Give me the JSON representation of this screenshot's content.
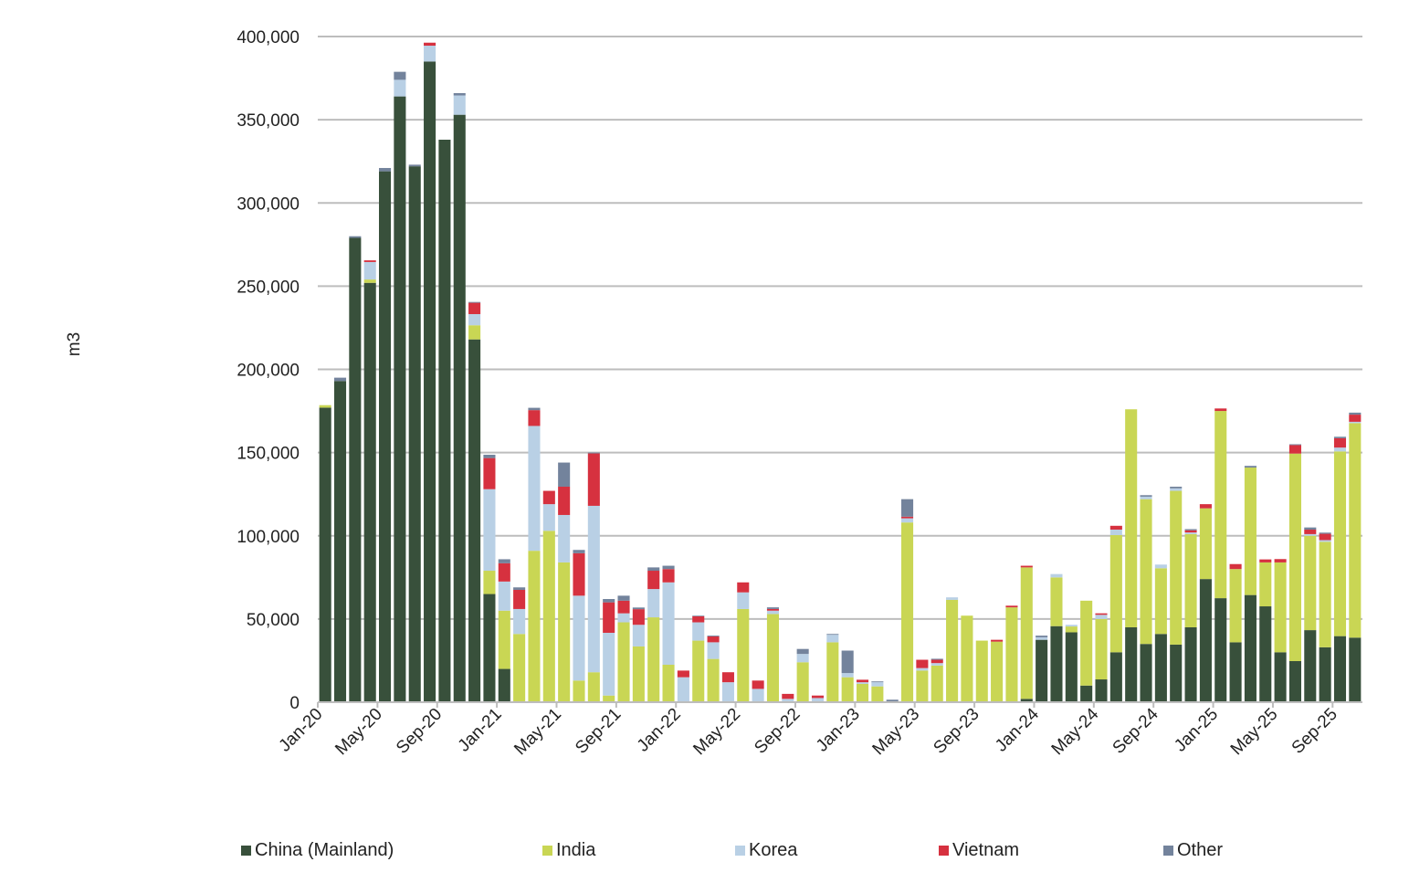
{
  "chart_data": {
    "type": "bar",
    "stacked": true,
    "title": "",
    "xlabel": "",
    "ylabel": "m3",
    "ylim": [
      0,
      400000
    ],
    "yticks": [
      0,
      50000,
      100000,
      150000,
      200000,
      250000,
      300000,
      350000,
      400000
    ],
    "ytick_labels": [
      "0",
      "50,000",
      "100,000",
      "150,000",
      "200,000",
      "250,000",
      "300,000",
      "350,000",
      "400,000"
    ],
    "grid": true,
    "legend_position": "bottom",
    "values_unit_multiplier": 1000,
    "x": [
      "Jan-20",
      "Feb-20",
      "Mar-20",
      "Apr-20",
      "May-20",
      "Jun-20",
      "Jul-20",
      "Aug-20",
      "Sep-20",
      "Oct-20",
      "Nov-20",
      "Dec-20",
      "Jan-21",
      "Feb-21",
      "Mar-21",
      "Apr-21",
      "May-21",
      "Jun-21",
      "Jul-21",
      "Aug-21",
      "Sep-21",
      "Oct-21",
      "Nov-21",
      "Dec-21",
      "Jan-22",
      "Feb-22",
      "Mar-22",
      "Apr-22",
      "May-22",
      "Jun-22",
      "Jul-22",
      "Aug-22",
      "Sep-22",
      "Oct-22",
      "Nov-22",
      "Dec-22",
      "Jan-23",
      "Feb-23",
      "Mar-23",
      "Apr-23",
      "May-23",
      "Jun-23",
      "Jul-23",
      "Aug-23",
      "Sep-23",
      "Oct-23",
      "Nov-23",
      "Dec-23",
      "Jan-24",
      "Feb-24",
      "Mar-24",
      "Apr-24",
      "May-24",
      "Jun-24",
      "Jul-24",
      "Aug-24",
      "Sep-24",
      "Oct-24",
      "Nov-24",
      "Dec-24",
      "Jan-25",
      "Feb-25",
      "Mar-25",
      "Apr-25",
      "May-25",
      "Jun-25",
      "Jul-25",
      "Aug-25",
      "Sep-25",
      "Oct-25"
    ],
    "xtick_labels": [
      "Jan-20",
      "May-20",
      "Sep-20",
      "Jan-21",
      "May-21",
      "Sep-21",
      "Jan-22",
      "May-22",
      "Sep-22",
      "Jan-23",
      "May-23",
      "Sep-23",
      "Jan-24",
      "May-24",
      "Sep-24",
      "Jan-25",
      "May-25",
      "Sep-25"
    ],
    "series": [
      {
        "name": "China (Mainland)",
        "color": "#38503b",
        "values": [
          177,
          193,
          279,
          252,
          319,
          364,
          322,
          385,
          338,
          353,
          218,
          65,
          20,
          0,
          0,
          0,
          0,
          0,
          0,
          0,
          0,
          0,
          0,
          0,
          0,
          0,
          0,
          0,
          0,
          0,
          0,
          0,
          0,
          0,
          0,
          0,
          0,
          0,
          0,
          0,
          0,
          0,
          0,
          0,
          0,
          0,
          0,
          2,
          37.5,
          45.7,
          42,
          10,
          13.7,
          30,
          45,
          35,
          41,
          34.6,
          45,
          74,
          62.5,
          36,
          64.4,
          57.6,
          30,
          24.7,
          43.3,
          33,
          39.7,
          38.8
        ]
      },
      {
        "name": "India",
        "color": "#c9d654",
        "values": [
          1.5,
          0,
          0,
          2,
          0,
          0,
          0,
          0,
          0,
          0,
          8.5,
          14,
          35,
          41,
          91,
          103,
          84,
          13,
          18,
          4,
          48,
          33.5,
          51,
          22.5,
          0,
          37,
          26,
          0,
          56,
          0,
          53,
          0,
          24,
          0,
          36,
          15,
          11,
          9.5,
          0,
          108,
          19,
          22,
          61.5,
          52,
          37,
          36.4,
          57,
          79,
          0,
          29.3,
          3.5,
          51,
          36.3,
          70.4,
          131,
          87,
          39.5,
          92.4,
          56,
          42.5,
          112.5,
          44,
          76.6,
          26.4,
          54,
          124.7,
          56.7,
          63.4,
          111,
          128.9
        ]
      },
      {
        "name": "Korea",
        "color": "#b9d0e5",
        "values": [
          0,
          0,
          0,
          10.5,
          0,
          10,
          0,
          9.5,
          0,
          11.6,
          6.7,
          49,
          17.5,
          15,
          75,
          16,
          28.5,
          51,
          100,
          37.7,
          5.4,
          13,
          17,
          49.5,
          15,
          11,
          10,
          12,
          10,
          8,
          2,
          2,
          5,
          2.5,
          4.5,
          2.5,
          1,
          2.5,
          0,
          2.5,
          1.5,
          1.5,
          1.5,
          0,
          0,
          0,
          0,
          0,
          1.5,
          2,
          1,
          0,
          2.5,
          3.3,
          0,
          1.5,
          2.2,
          1.5,
          1,
          0,
          0,
          0,
          0,
          0,
          0,
          0,
          1,
          1,
          2.3,
          0.8
        ]
      },
      {
        "name": "Vietnam",
        "color": "#d6313f",
        "values": [
          0,
          0,
          0,
          1,
          0,
          0,
          0,
          1.8,
          0,
          0,
          6.8,
          18.7,
          11,
          11.5,
          9.5,
          8,
          17,
          25.5,
          31.5,
          18.3,
          7.6,
          9.4,
          11,
          8,
          4,
          3.6,
          3.5,
          6,
          6,
          5,
          1,
          3,
          0,
          1.5,
          0,
          0,
          1.5,
          0,
          0,
          1,
          5,
          2,
          0,
          0,
          0,
          1.1,
          1,
          1,
          0,
          0,
          0,
          0,
          0.9,
          2.3,
          0,
          0,
          0,
          0,
          1.3,
          2.5,
          1.5,
          3,
          0,
          1.8,
          2,
          5.1,
          2.7,
          3.8,
          5.6,
          4.3
        ]
      },
      {
        "name": "Other",
        "color": "#73839c",
        "values": [
          0,
          2,
          1,
          0,
          2,
          4.8,
          1,
          0,
          0,
          1.4,
          0.5,
          2,
          2.4,
          1.5,
          1.4,
          0,
          14.5,
          2,
          0.5,
          2,
          3,
          1,
          2,
          2,
          0,
          0.4,
          0.5,
          0,
          0,
          0,
          1,
          0,
          3,
          0,
          0.5,
          13.5,
          0,
          0.5,
          1.5,
          10.5,
          0,
          0.6,
          0,
          0,
          0,
          0,
          0,
          0,
          1,
          0,
          0,
          0,
          0,
          0,
          0,
          0.9,
          0,
          1,
          0.7,
          0,
          0,
          0,
          1,
          0,
          0,
          0.5,
          1.3,
          0.7,
          0.9,
          1.2
        ]
      }
    ]
  }
}
